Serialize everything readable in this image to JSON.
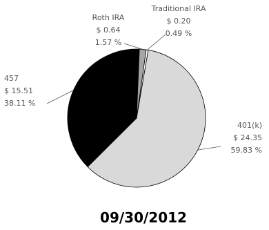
{
  "chart_data": {
    "type": "pie",
    "title": "09/30/2012",
    "slices": [
      {
        "name": "401(k)",
        "amount": "$ 24.35",
        "percent": "59.83 %",
        "value": 59.83,
        "color": "#d9d9d9"
      },
      {
        "name": "457",
        "amount": "$ 15.51",
        "percent": "38.11 %",
        "value": 38.11,
        "color": "#000000"
      },
      {
        "name": "Roth IRA",
        "amount": "$ 0.64",
        "percent": "1.57 %",
        "value": 1.57,
        "color": "#a6a6a6"
      },
      {
        "name": "Traditional IRA",
        "amount": "$ 0.20",
        "percent": "0.49 %",
        "value": 0.49,
        "color": "#ffffff"
      }
    ]
  }
}
